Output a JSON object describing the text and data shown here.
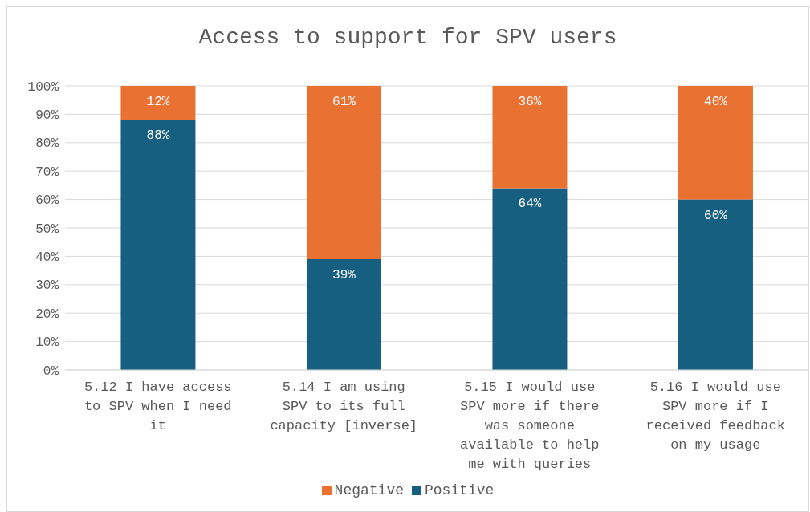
{
  "chart_data": {
    "type": "bar",
    "title": "Access to support for SPV users",
    "stacked": true,
    "categories": [
      "5.12 I have access to SPV when I need it",
      "5.14 I am using SPV to its full capacity [inverse]",
      "5.15 I would use SPV more if there was someone available to help me with queries",
      "5.16 I would use SPV more if I received feedback on my usage"
    ],
    "series": [
      {
        "name": "Positive",
        "color": "#175f80",
        "values": [
          88,
          39,
          64,
          60
        ]
      },
      {
        "name": "Negative",
        "color": "#e97132",
        "values": [
          12,
          61,
          36,
          40
        ]
      }
    ],
    "ylim": [
      0,
      100
    ],
    "yticks": [
      {
        "value": 0,
        "label": "0%"
      },
      {
        "value": 10,
        "label": "10%"
      },
      {
        "value": 20,
        "label": "20%"
      },
      {
        "value": 30,
        "label": "30%"
      },
      {
        "value": 40,
        "label": "40%"
      },
      {
        "value": 50,
        "label": "50%"
      },
      {
        "value": 60,
        "label": "60%"
      },
      {
        "value": 70,
        "label": "70%"
      },
      {
        "value": 80,
        "label": "80%"
      },
      {
        "value": 90,
        "label": "90%"
      },
      {
        "value": 100,
        "label": "100%"
      }
    ],
    "value_labels": [
      [
        "88%",
        "39%",
        "64%",
        "60%"
      ],
      [
        "12%",
        "61%",
        "36%",
        "40%"
      ]
    ],
    "grid": "y",
    "legend": "bottom"
  }
}
